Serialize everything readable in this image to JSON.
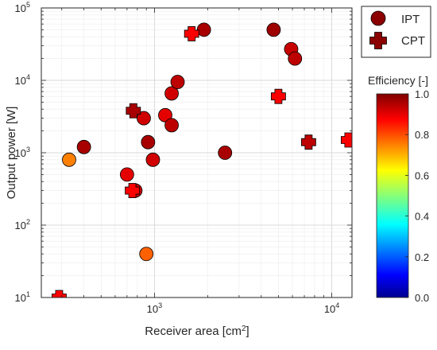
{
  "chart_data": {
    "type": "scatter",
    "title": "",
    "xlabel": "Receiver area [cm",
    "xlabel_superscript": "2",
    "xlabel_suffix": "]",
    "ylabel": "Output power [W]",
    "x_scale": "log",
    "y_scale": "log",
    "xlim": [
      230,
      13000
    ],
    "ylim": [
      10,
      100000
    ],
    "x_ticks": [
      {
        "value": 1000,
        "base": "10",
        "exp": "3"
      },
      {
        "value": 10000,
        "base": "10",
        "exp": "4"
      }
    ],
    "y_ticks": [
      {
        "value": 10,
        "base": "10",
        "exp": "1"
      },
      {
        "value": 100,
        "base": "10",
        "exp": "2"
      },
      {
        "value": 1000,
        "base": "10",
        "exp": "3"
      },
      {
        "value": 10000,
        "base": "10",
        "exp": "4"
      },
      {
        "value": 100000,
        "base": "10",
        "exp": "5"
      }
    ],
    "grid": true,
    "legend": {
      "placement": "top-right",
      "entries": [
        {
          "label": "IPT",
          "marker": "circle",
          "color": "#8b0000"
        },
        {
          "label": "CPT",
          "marker": "cross",
          "color": "#8b0000"
        }
      ]
    },
    "colorbar": {
      "label": "Efficiency [-]",
      "min": 0.0,
      "max": 1.0,
      "tick_labels": [
        "0.0",
        "0.2",
        "0.4",
        "0.6",
        "0.8",
        "1.0"
      ],
      "colormap": "jet"
    },
    "series": [
      {
        "name": "IPT",
        "marker": "circle",
        "points": [
          {
            "x": 330,
            "y": 800,
            "efficiency": 0.75
          },
          {
            "x": 400,
            "y": 1200,
            "efficiency": 0.96
          },
          {
            "x": 700,
            "y": 500,
            "efficiency": 0.9
          },
          {
            "x": 780,
            "y": 300,
            "efficiency": 0.93
          },
          {
            "x": 870,
            "y": 3000,
            "efficiency": 0.92
          },
          {
            "x": 920,
            "y": 1400,
            "efficiency": 0.96
          },
          {
            "x": 900,
            "y": 40,
            "efficiency": 0.78
          },
          {
            "x": 980,
            "y": 800,
            "efficiency": 0.92
          },
          {
            "x": 1150,
            "y": 3300,
            "efficiency": 0.9
          },
          {
            "x": 1250,
            "y": 2400,
            "efficiency": 0.94
          },
          {
            "x": 1250,
            "y": 6600,
            "efficiency": 0.92
          },
          {
            "x": 1350,
            "y": 9500,
            "efficiency": 0.94
          },
          {
            "x": 1900,
            "y": 50000,
            "efficiency": 0.96
          },
          {
            "x": 2500,
            "y": 1000,
            "efficiency": 0.96
          },
          {
            "x": 4700,
            "y": 50000,
            "efficiency": 0.97
          },
          {
            "x": 5900,
            "y": 27000,
            "efficiency": 0.93
          },
          {
            "x": 6200,
            "y": 20000,
            "efficiency": 0.94
          }
        ]
      },
      {
        "name": "CPT",
        "marker": "cross",
        "points": [
          {
            "x": 290,
            "y": 10,
            "efficiency": 0.88
          },
          {
            "x": 750,
            "y": 300,
            "efficiency": 0.88
          },
          {
            "x": 760,
            "y": 3800,
            "efficiency": 0.96
          },
          {
            "x": 1620,
            "y": 44000,
            "efficiency": 0.88
          },
          {
            "x": 5000,
            "y": 6000,
            "efficiency": 0.88
          },
          {
            "x": 7400,
            "y": 1400,
            "efficiency": 0.94
          },
          {
            "x": 12400,
            "y": 1500,
            "efficiency": 0.88
          }
        ]
      }
    ]
  }
}
